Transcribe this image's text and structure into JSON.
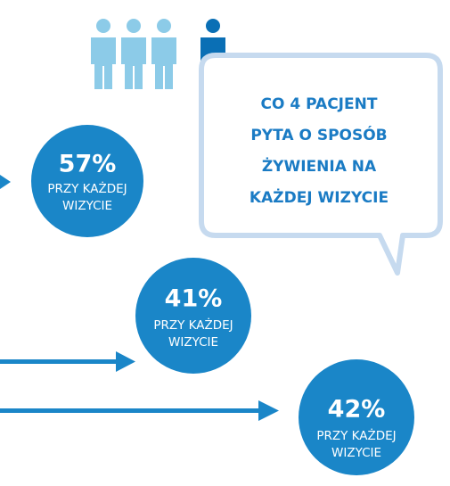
{
  "callout": {
    "lines": [
      "CO 4 PACJENT",
      "PYTA O SPOSÓB",
      "ŻYWIENIA NA",
      "KAŻDEJ WIZYCIE"
    ]
  },
  "stats": [
    {
      "value": "57%",
      "lines": [
        "PRZY KAŻDEJ",
        "WIZYCIE"
      ]
    },
    {
      "value": "41%",
      "lines": [
        "PRZY KAŻDEJ",
        "WIZYCIE"
      ]
    },
    {
      "value": "42%",
      "lines": [
        "PRZY KAŻDEJ",
        "WIZYCIE"
      ]
    }
  ]
}
